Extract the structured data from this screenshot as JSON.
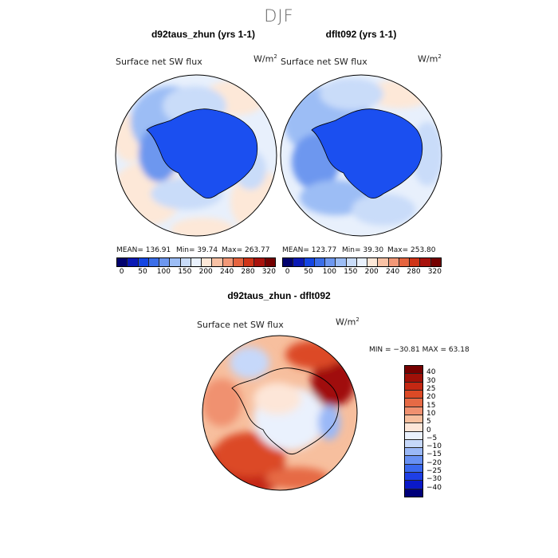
{
  "season": "DJF",
  "panels": {
    "left": {
      "title": "d92taus_zhun (yrs 1-1)",
      "variable": "Surface net SW flux",
      "units": "W/m",
      "units_sup": "2",
      "mean": "MEAN= 136.91",
      "min": "Min=  39.74",
      "max": "Max= 263.77"
    },
    "right": {
      "title": "dflt092 (yrs 1-1)",
      "variable": "Surface net SW flux",
      "units": "W/m",
      "units_sup": "2",
      "mean": "MEAN= 123.77",
      "min": "Min=  39.30",
      "max": "Max= 253.80"
    },
    "diff": {
      "title": "d92taus_zhun - dflt092",
      "variable": "Surface net SW flux",
      "units": "W/m",
      "units_sup": "2",
      "minmax": "MIN = −30.81  MAX =  63.18"
    }
  },
  "colors": {
    "land": "#1b4ff0",
    "abs_scale": [
      "#02026e",
      "#0a19b5",
      "#1446e3",
      "#3b6ee8",
      "#6d97ef",
      "#9cbdf5",
      "#c9dcf9",
      "#e9f1fd",
      "#fde8d8",
      "#f9c2a5",
      "#f29877",
      "#e5643f",
      "#cf3417",
      "#a8120c",
      "#740000"
    ],
    "diff_scale": [
      "#00007a",
      "#0a19c8",
      "#1e3fe6",
      "#3a68ef",
      "#6891f4",
      "#9ab8f7",
      "#c6d8fa",
      "#eaf1fd",
      "#fde6d8",
      "#f7bf9e",
      "#f09170",
      "#e66a45",
      "#dc4a26",
      "#c42813",
      "#a01008",
      "#760000"
    ]
  },
  "chart_data": [
    {
      "type": "heatmap",
      "title": "d92taus_zhun (yrs 1-1)",
      "variable": "Surface net SW flux",
      "units": "W/m2",
      "projection": "south-polar stereographic",
      "stats": {
        "mean": 136.91,
        "min": 39.74,
        "max": 263.77
      },
      "colorbar_levels": [
        0,
        25,
        50,
        75,
        100,
        125,
        150,
        175,
        200,
        220,
        240,
        260,
        280,
        300,
        320
      ],
      "colorbar_tick_labels": [
        "0",
        "50",
        "100",
        "150",
        "200",
        "240",
        "280",
        "320"
      ]
    },
    {
      "type": "heatmap",
      "title": "dflt092 (yrs 1-1)",
      "variable": "Surface net SW flux",
      "units": "W/m2",
      "projection": "south-polar stereographic",
      "stats": {
        "mean": 123.77,
        "min": 39.3,
        "max": 253.8
      },
      "colorbar_levels": [
        0,
        25,
        50,
        75,
        100,
        125,
        150,
        175,
        200,
        220,
        240,
        260,
        280,
        300,
        320
      ],
      "colorbar_tick_labels": [
        "0",
        "50",
        "100",
        "150",
        "200",
        "240",
        "280",
        "320"
      ]
    },
    {
      "type": "heatmap",
      "title": "d92taus_zhun - dflt092",
      "variable": "Surface net SW flux",
      "units": "W/m2",
      "projection": "south-polar stereographic",
      "stats": {
        "min": -30.81,
        "max": 63.18
      },
      "colorbar_tick_labels": [
        "40",
        "30",
        "25",
        "20",
        "15",
        "10",
        "5",
        "0",
        "−5",
        "−10",
        "−15",
        "−20",
        "−25",
        "−30",
        "−40"
      ]
    }
  ]
}
